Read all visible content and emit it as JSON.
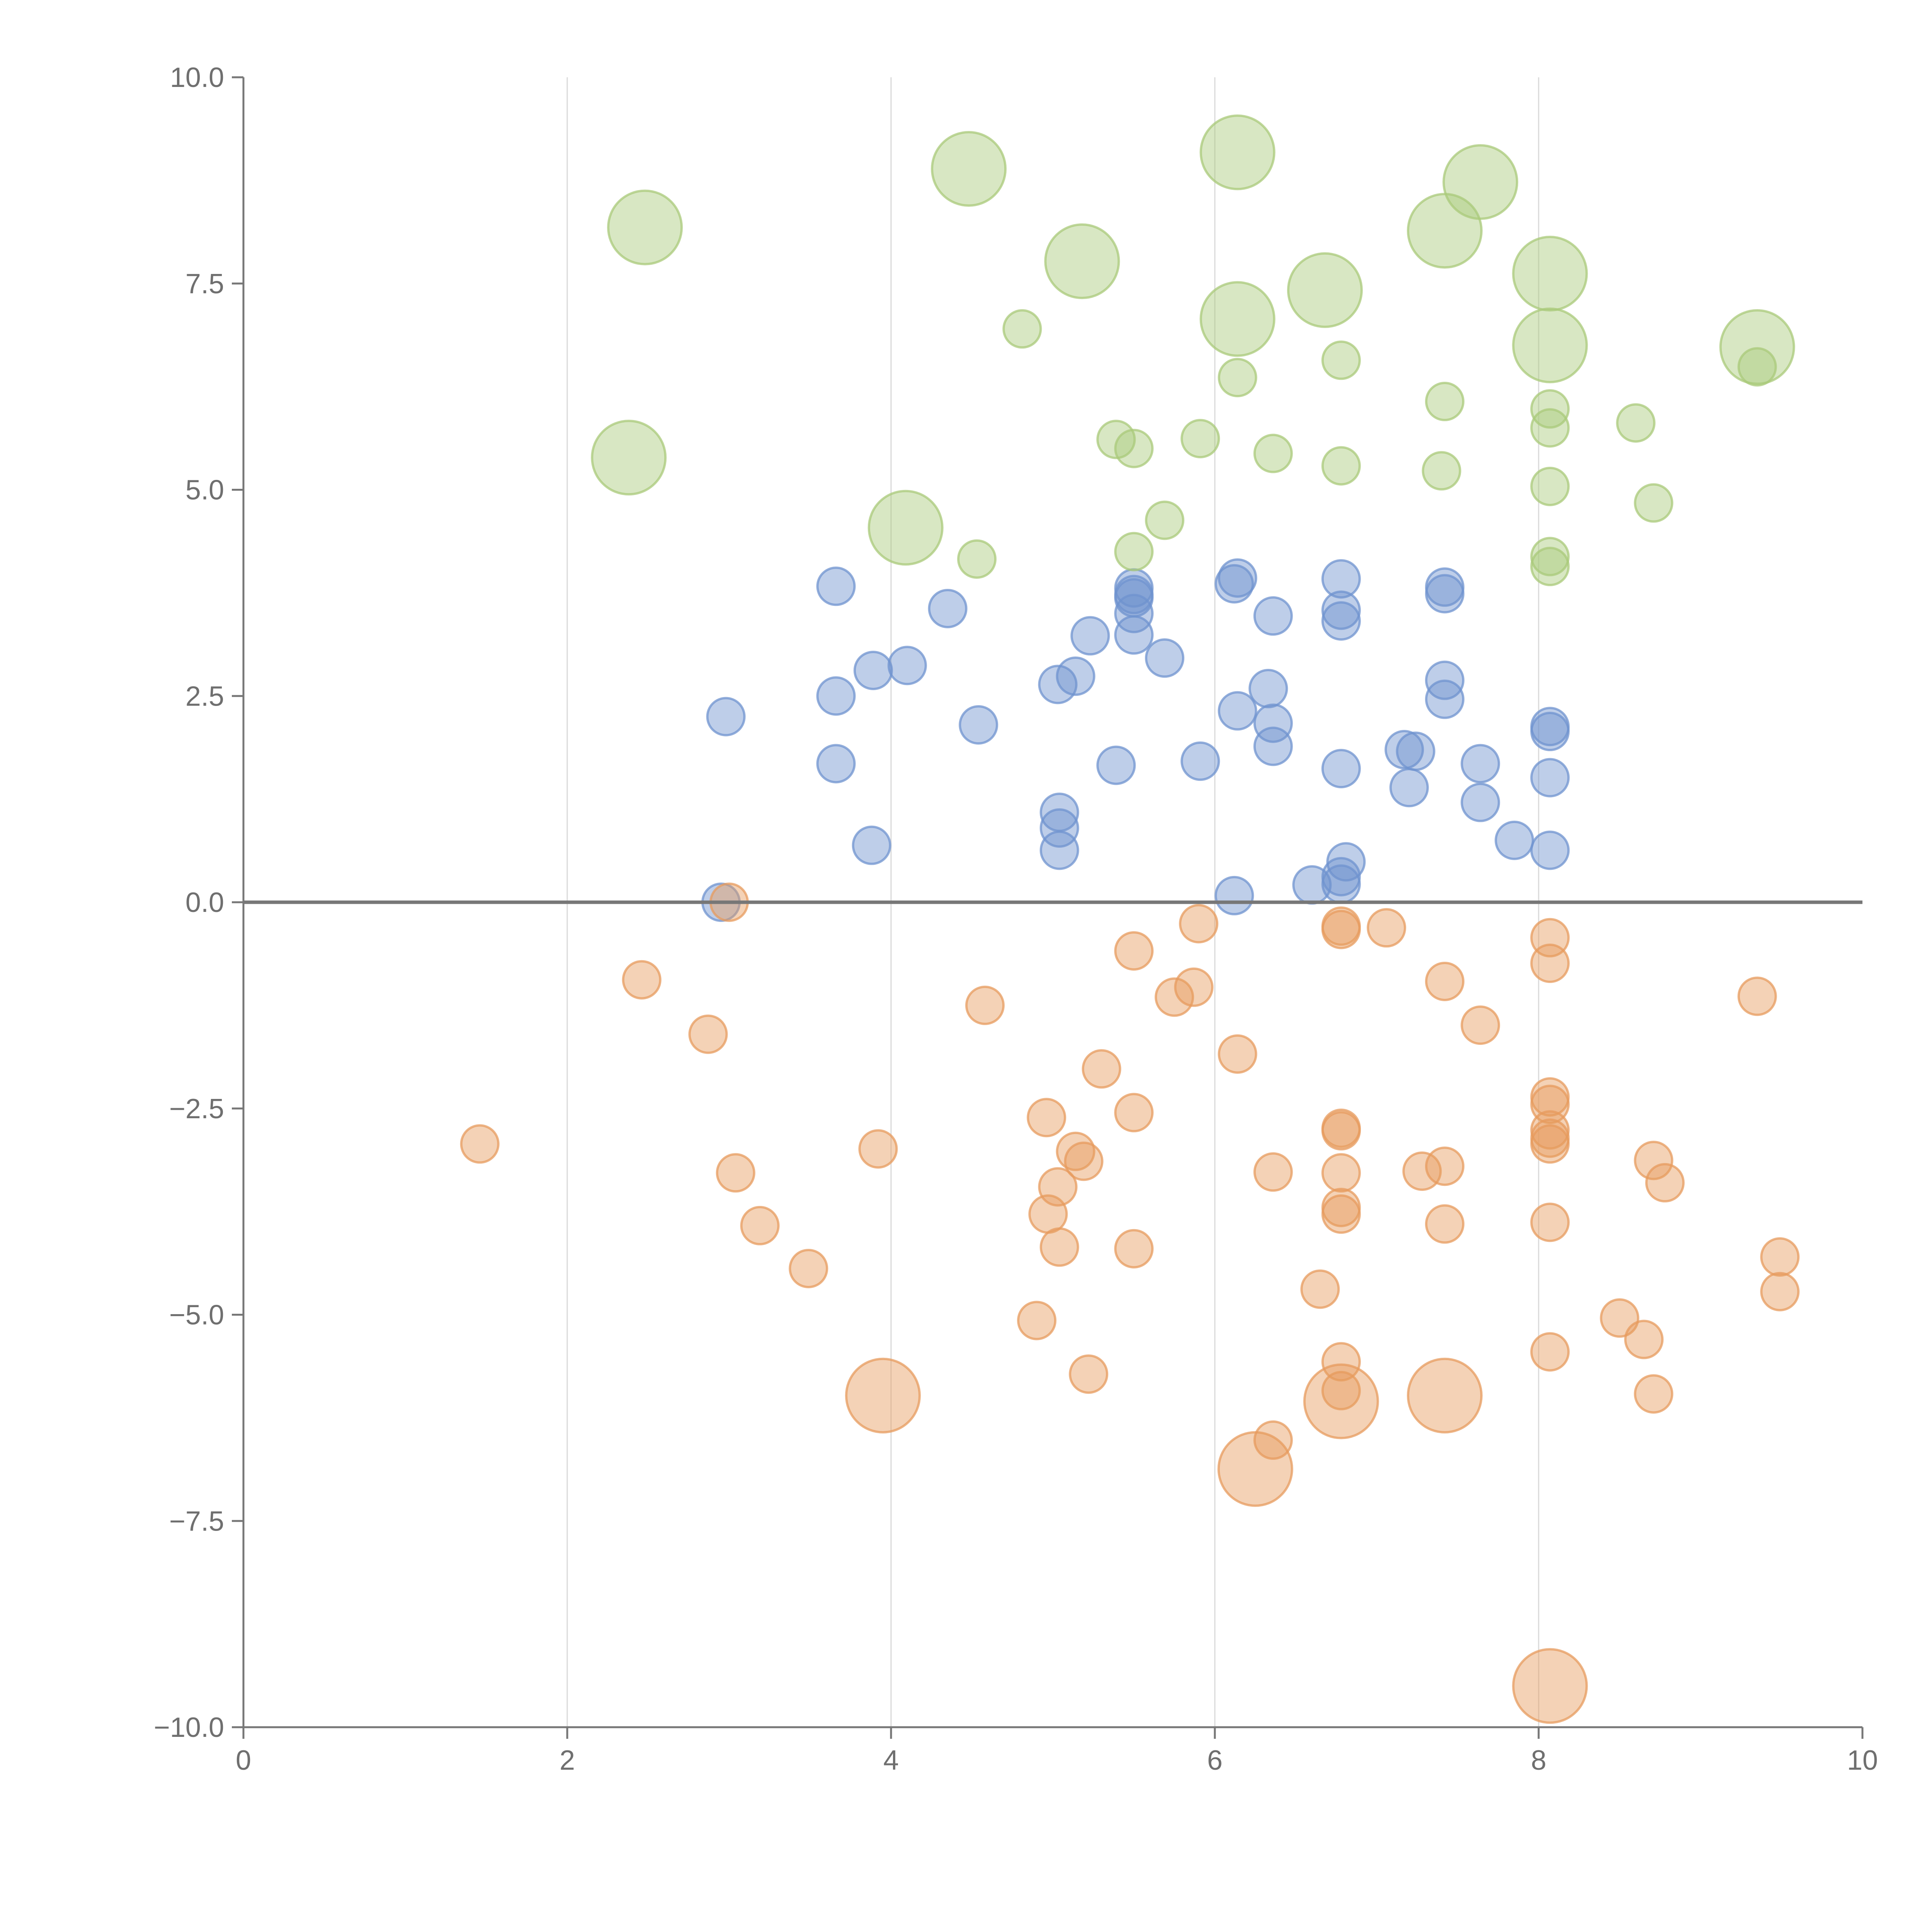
{
  "colors": {
    "blue": "#6f93cf",
    "orange": "#e79b5e",
    "green": "#a9c97a",
    "axis": "#777777",
    "grid": "#d9d9d9",
    "label": "#6f6f6f"
  },
  "chart_data": {
    "type": "scatter",
    "title": "",
    "xlabel": "",
    "ylabel": "",
    "xlim": [
      0,
      10
    ],
    "ylim": [
      -10,
      10
    ],
    "x_ticks": [
      {
        "value": 0,
        "label": "0"
      },
      {
        "value": 2,
        "label": "2"
      },
      {
        "value": 4,
        "label": "4"
      },
      {
        "value": 6,
        "label": "6"
      },
      {
        "value": 8,
        "label": "8"
      },
      {
        "value": 10,
        "label": "10"
      }
    ],
    "y_ticks": [
      {
        "value": 10,
        "label": "10.0"
      },
      {
        "value": 7.5,
        "label": "7.5"
      },
      {
        "value": 5,
        "label": "5.0"
      },
      {
        "value": 2.5,
        "label": "2.5"
      },
      {
        "value": 0,
        "label": "0.0"
      },
      {
        "value": -2.5,
        "label": "−2.5"
      },
      {
        "value": -5,
        "label": "−5.0"
      },
      {
        "value": -7.5,
        "label": "−7.5"
      },
      {
        "value": -10,
        "label": "−10.0"
      }
    ],
    "grid": {
      "vertical": true,
      "horizontal": false
    },
    "zero_line": true,
    "legend": "none",
    "series": [
      {
        "color": "blue",
        "points": [
          {
            "x": 2.95,
            "y": 0.0,
            "s": 1
          },
          {
            "x": 2.98,
            "y": 2.25,
            "s": 1
          },
          {
            "x": 3.66,
            "y": 3.83,
            "s": 1
          },
          {
            "x": 3.66,
            "y": 2.5,
            "s": 1
          },
          {
            "x": 3.66,
            "y": 1.68,
            "s": 1
          },
          {
            "x": 3.89,
            "y": 2.81,
            "s": 1
          },
          {
            "x": 3.88,
            "y": 0.69,
            "s": 1
          },
          {
            "x": 4.1,
            "y": 2.87,
            "s": 1
          },
          {
            "x": 4.35,
            "y": 3.56,
            "s": 1
          },
          {
            "x": 4.54,
            "y": 2.15,
            "s": 1
          },
          {
            "x": 5.03,
            "y": 2.64,
            "s": 1
          },
          {
            "x": 5.14,
            "y": 2.74,
            "s": 1
          },
          {
            "x": 5.04,
            "y": 1.09,
            "s": 1
          },
          {
            "x": 5.04,
            "y": 0.9,
            "s": 1
          },
          {
            "x": 5.04,
            "y": 0.63,
            "s": 1
          },
          {
            "x": 5.23,
            "y": 3.23,
            "s": 1
          },
          {
            "x": 5.39,
            "y": 1.66,
            "s": 1
          },
          {
            "x": 5.5,
            "y": 3.81,
            "s": 1
          },
          {
            "x": 5.5,
            "y": 3.73,
            "s": 1
          },
          {
            "x": 5.5,
            "y": 3.69,
            "s": 1
          },
          {
            "x": 5.5,
            "y": 3.5,
            "s": 1
          },
          {
            "x": 5.5,
            "y": 3.24,
            "s": 1
          },
          {
            "x": 5.69,
            "y": 2.96,
            "s": 1
          },
          {
            "x": 5.91,
            "y": 1.71,
            "s": 1
          },
          {
            "x": 6.12,
            "y": 3.86,
            "s": 1
          },
          {
            "x": 6.14,
            "y": 3.93,
            "s": 1
          },
          {
            "x": 6.14,
            "y": 2.32,
            "s": 1
          },
          {
            "x": 6.12,
            "y": 0.08,
            "s": 1
          },
          {
            "x": 6.33,
            "y": 2.59,
            "s": 1
          },
          {
            "x": 6.36,
            "y": 3.47,
            "s": 1
          },
          {
            "x": 6.36,
            "y": 2.17,
            "s": 1
          },
          {
            "x": 6.36,
            "y": 1.89,
            "s": 1
          },
          {
            "x": 6.6,
            "y": 0.21,
            "s": 1
          },
          {
            "x": 6.78,
            "y": 3.92,
            "s": 1
          },
          {
            "x": 6.78,
            "y": 3.54,
            "s": 1
          },
          {
            "x": 6.78,
            "y": 3.41,
            "s": 1
          },
          {
            "x": 6.78,
            "y": 1.62,
            "s": 1
          },
          {
            "x": 6.81,
            "y": 0.49,
            "s": 1
          },
          {
            "x": 6.78,
            "y": 0.31,
            "s": 1
          },
          {
            "x": 6.78,
            "y": 0.22,
            "s": 1
          },
          {
            "x": 7.17,
            "y": 1.85,
            "s": 1
          },
          {
            "x": 7.24,
            "y": 1.83,
            "s": 1
          },
          {
            "x": 7.2,
            "y": 1.39,
            "s": 1
          },
          {
            "x": 7.42,
            "y": 3.82,
            "s": 1
          },
          {
            "x": 7.42,
            "y": 3.74,
            "s": 1
          },
          {
            "x": 7.42,
            "y": 2.69,
            "s": 1
          },
          {
            "x": 7.42,
            "y": 2.46,
            "s": 1
          },
          {
            "x": 7.64,
            "y": 1.68,
            "s": 1
          },
          {
            "x": 7.64,
            "y": 1.21,
            "s": 1
          },
          {
            "x": 7.85,
            "y": 0.75,
            "s": 1
          },
          {
            "x": 8.07,
            "y": 2.13,
            "s": 1
          },
          {
            "x": 8.07,
            "y": 2.07,
            "s": 1
          },
          {
            "x": 8.07,
            "y": 1.51,
            "s": 1
          },
          {
            "x": 8.07,
            "y": 0.63,
            "s": 1
          }
        ]
      },
      {
        "color": "orange",
        "points": [
          {
            "x": 1.46,
            "y": -2.93,
            "s": 1
          },
          {
            "x": 2.46,
            "y": -0.94,
            "s": 1
          },
          {
            "x": 2.87,
            "y": -1.6,
            "s": 1
          },
          {
            "x": 3.0,
            "y": 0.0,
            "s": 1
          },
          {
            "x": 3.04,
            "y": -3.28,
            "s": 1
          },
          {
            "x": 3.19,
            "y": -3.92,
            "s": 1
          },
          {
            "x": 3.49,
            "y": -4.44,
            "s": 1
          },
          {
            "x": 3.92,
            "y": -2.99,
            "s": 1
          },
          {
            "x": 3.95,
            "y": -5.98,
            "s": 3
          },
          {
            "x": 4.58,
            "y": -1.25,
            "s": 1
          },
          {
            "x": 4.9,
            "y": -5.07,
            "s": 1
          },
          {
            "x": 4.96,
            "y": -2.61,
            "s": 1
          },
          {
            "x": 4.97,
            "y": -3.78,
            "s": 1
          },
          {
            "x": 5.03,
            "y": -3.45,
            "s": 1
          },
          {
            "x": 5.04,
            "y": -4.18,
            "s": 1
          },
          {
            "x": 5.14,
            "y": -3.02,
            "s": 1
          },
          {
            "x": 5.19,
            "y": -3.14,
            "s": 1
          },
          {
            "x": 5.22,
            "y": -5.72,
            "s": 1
          },
          {
            "x": 5.3,
            "y": -2.02,
            "s": 1
          },
          {
            "x": 5.5,
            "y": -0.59,
            "s": 1
          },
          {
            "x": 5.5,
            "y": -2.55,
            "s": 1
          },
          {
            "x": 5.5,
            "y": -4.2,
            "s": 1
          },
          {
            "x": 5.75,
            "y": -1.15,
            "s": 1
          },
          {
            "x": 5.87,
            "y": -1.03,
            "s": 1
          },
          {
            "x": 5.9,
            "y": -0.26,
            "s": 1
          },
          {
            "x": 6.14,
            "y": -1.84,
            "s": 1
          },
          {
            "x": 6.25,
            "y": -6.87,
            "s": 3
          },
          {
            "x": 6.36,
            "y": -3.27,
            "s": 1
          },
          {
            "x": 6.36,
            "y": -6.52,
            "s": 1
          },
          {
            "x": 6.65,
            "y": -4.69,
            "s": 1
          },
          {
            "x": 6.78,
            "y": -0.29,
            "s": 1
          },
          {
            "x": 6.78,
            "y": -0.33,
            "s": 1
          },
          {
            "x": 6.78,
            "y": -2.74,
            "s": 1
          },
          {
            "x": 6.78,
            "y": -2.77,
            "s": 1
          },
          {
            "x": 6.78,
            "y": -3.28,
            "s": 1
          },
          {
            "x": 6.78,
            "y": -3.7,
            "s": 1
          },
          {
            "x": 6.78,
            "y": -3.78,
            "s": 1
          },
          {
            "x": 6.78,
            "y": -5.57,
            "s": 1
          },
          {
            "x": 6.78,
            "y": -5.92,
            "s": 1
          },
          {
            "x": 6.78,
            "y": -6.05,
            "s": 3
          },
          {
            "x": 7.06,
            "y": -0.31,
            "s": 1
          },
          {
            "x": 7.28,
            "y": -3.26,
            "s": 1
          },
          {
            "x": 7.42,
            "y": -0.96,
            "s": 1
          },
          {
            "x": 7.42,
            "y": -3.2,
            "s": 1
          },
          {
            "x": 7.42,
            "y": -3.9,
            "s": 1
          },
          {
            "x": 7.42,
            "y": -5.98,
            "s": 3
          },
          {
            "x": 7.64,
            "y": -1.49,
            "s": 1
          },
          {
            "x": 8.07,
            "y": -0.43,
            "s": 1
          },
          {
            "x": 8.07,
            "y": -0.74,
            "s": 1
          },
          {
            "x": 8.07,
            "y": -2.36,
            "s": 1
          },
          {
            "x": 8.07,
            "y": -2.45,
            "s": 1
          },
          {
            "x": 8.07,
            "y": -2.76,
            "s": 1
          },
          {
            "x": 8.07,
            "y": -2.86,
            "s": 1
          },
          {
            "x": 8.07,
            "y": -2.93,
            "s": 1
          },
          {
            "x": 8.07,
            "y": -3.88,
            "s": 1
          },
          {
            "x": 8.07,
            "y": -5.45,
            "s": 1
          },
          {
            "x": 8.07,
            "y": -9.5,
            "s": 3
          },
          {
            "x": 8.5,
            "y": -5.04,
            "s": 1
          },
          {
            "x": 8.65,
            "y": -5.3,
            "s": 1
          },
          {
            "x": 8.71,
            "y": -3.13,
            "s": 1
          },
          {
            "x": 8.71,
            "y": -5.96,
            "s": 1
          },
          {
            "x": 8.78,
            "y": -3.4,
            "s": 1
          },
          {
            "x": 9.35,
            "y": -1.14,
            "s": 1
          },
          {
            "x": 9.49,
            "y": -4.3,
            "s": 1
          },
          {
            "x": 9.49,
            "y": -4.72,
            "s": 1
          }
        ]
      },
      {
        "color": "green",
        "points": [
          {
            "x": 2.38,
            "y": 5.39,
            "s": 3
          },
          {
            "x": 2.48,
            "y": 8.18,
            "s": 3
          },
          {
            "x": 4.09,
            "y": 4.54,
            "s": 3
          },
          {
            "x": 4.48,
            "y": 8.89,
            "s": 3
          },
          {
            "x": 4.53,
            "y": 4.16,
            "s": 1
          },
          {
            "x": 4.81,
            "y": 6.95,
            "s": 1
          },
          {
            "x": 5.18,
            "y": 7.77,
            "s": 3
          },
          {
            "x": 5.39,
            "y": 5.61,
            "s": 1
          },
          {
            "x": 5.5,
            "y": 5.5,
            "s": 1
          },
          {
            "x": 5.5,
            "y": 4.25,
            "s": 1
          },
          {
            "x": 5.69,
            "y": 4.63,
            "s": 1
          },
          {
            "x": 5.91,
            "y": 5.62,
            "s": 1
          },
          {
            "x": 6.14,
            "y": 9.09,
            "s": 3
          },
          {
            "x": 6.14,
            "y": 7.07,
            "s": 3
          },
          {
            "x": 6.14,
            "y": 6.36,
            "s": 1
          },
          {
            "x": 6.36,
            "y": 5.44,
            "s": 1
          },
          {
            "x": 6.68,
            "y": 7.42,
            "s": 3
          },
          {
            "x": 6.78,
            "y": 6.57,
            "s": 1
          },
          {
            "x": 6.78,
            "y": 5.29,
            "s": 1
          },
          {
            "x": 7.4,
            "y": 5.23,
            "s": 1
          },
          {
            "x": 7.42,
            "y": 8.14,
            "s": 3
          },
          {
            "x": 7.42,
            "y": 6.07,
            "s": 1
          },
          {
            "x": 7.64,
            "y": 8.73,
            "s": 3
          },
          {
            "x": 8.07,
            "y": 7.62,
            "s": 3
          },
          {
            "x": 8.07,
            "y": 6.75,
            "s": 3
          },
          {
            "x": 8.07,
            "y": 5.98,
            "s": 1
          },
          {
            "x": 8.07,
            "y": 5.75,
            "s": 1
          },
          {
            "x": 8.07,
            "y": 5.04,
            "s": 1
          },
          {
            "x": 8.07,
            "y": 4.19,
            "s": 1
          },
          {
            "x": 8.07,
            "y": 4.07,
            "s": 1
          },
          {
            "x": 8.6,
            "y": 5.81,
            "s": 1
          },
          {
            "x": 8.71,
            "y": 4.84,
            "s": 1
          },
          {
            "x": 9.35,
            "y": 6.73,
            "s": 3
          },
          {
            "x": 9.35,
            "y": 6.49,
            "s": 1
          }
        ]
      }
    ]
  }
}
